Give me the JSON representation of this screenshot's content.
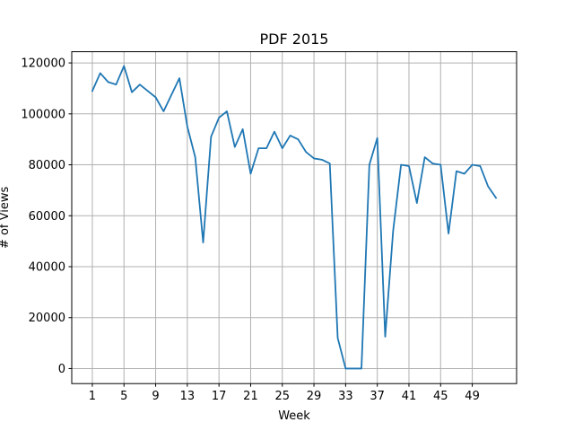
{
  "chart_data": {
    "type": "line",
    "title": "PDF 2015",
    "xlabel": "Week",
    "ylabel": "# of Views",
    "xlim": [
      -1.6,
      54.6
    ],
    "ylim": [
      -5900,
      124400
    ],
    "grid": true,
    "x_ticks": [
      1,
      5,
      9,
      13,
      17,
      21,
      25,
      29,
      33,
      37,
      41,
      45,
      49
    ],
    "y_ticks": [
      0,
      20000,
      40000,
      60000,
      80000,
      100000,
      120000
    ],
    "y_tick_labels": [
      "0",
      "20000",
      "40000",
      "60000",
      "80000",
      "100000",
      "120000"
    ],
    "series": [
      {
        "color": "#1f77b4",
        "x": [
          1,
          2,
          3,
          4,
          5,
          6,
          7,
          8,
          9,
          10,
          11,
          12,
          13,
          14,
          15,
          16,
          17,
          18,
          19,
          20,
          21,
          22,
          23,
          24,
          25,
          26,
          27,
          28,
          29,
          30,
          31,
          32,
          33,
          34,
          35,
          36,
          37,
          38,
          39,
          40,
          41,
          42,
          43,
          44,
          45,
          46,
          47,
          48,
          49,
          50,
          51,
          52
        ],
        "values": [
          109000,
          116000,
          112500,
          111500,
          118800,
          108500,
          111500,
          109000,
          106500,
          101000,
          107500,
          114000,
          95000,
          83000,
          49500,
          91000,
          98500,
          101000,
          87000,
          94000,
          76500,
          86500,
          86500,
          93000,
          86500,
          91500,
          90000,
          85000,
          82500,
          82000,
          80500,
          12000,
          0,
          0,
          0,
          80000,
          90500,
          12500,
          54000,
          80000,
          79500,
          65000,
          83000,
          80500,
          80000,
          53000,
          77500,
          76500,
          80000,
          79500,
          71500,
          67000
        ]
      }
    ]
  }
}
